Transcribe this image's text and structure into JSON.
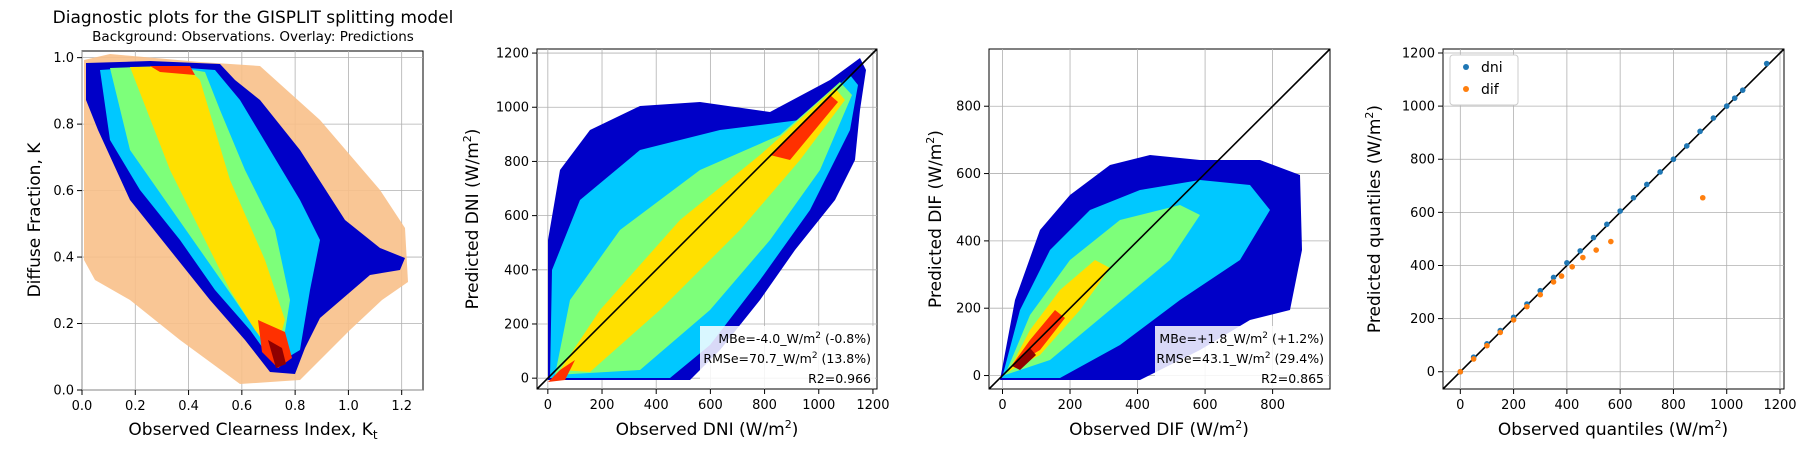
{
  "chart_data": [
    {
      "type": "scatter",
      "title": "Diagnostic plots for the GISPLIT splitting model",
      "subtitle": "Background: Observations. Overlay: Predictions",
      "xlabel": "Observed Clearness Index, K",
      "xlabel_sub": "t",
      "ylabel": "Diffuse Fraction, K",
      "xlim": [
        0.0,
        1.28
      ],
      "ylim": [
        0.0,
        1.02
      ],
      "xticks": [
        0.0,
        0.2,
        0.4,
        0.6,
        0.8,
        1.0,
        1.2
      ],
      "xtick_labels": [
        "0.0",
        "0.2",
        "0.4",
        "0.6",
        "0.8",
        "1.0",
        "1.2"
      ],
      "yticks": [
        0.0,
        0.2,
        0.4,
        0.6,
        0.8,
        1.0
      ],
      "ytick_labels": [
        "0.0",
        "0.2",
        "0.4",
        "0.6",
        "0.8",
        "1.0"
      ],
      "grid": true,
      "series": [
        {
          "name": "",
          "role": "observations",
          "color": "#f5b478",
          "x": [
            0.02,
            0.05,
            0.1,
            0.2,
            0.3,
            0.4,
            0.5,
            0.6,
            0.7,
            0.8,
            0.9,
            1.0,
            1.1,
            1.2
          ],
          "y": [
            0.98,
            0.97,
            0.92,
            0.8,
            0.68,
            0.58,
            0.5,
            0.42,
            0.35,
            0.28,
            0.25,
            0.28,
            0.32,
            0.38
          ]
        },
        {
          "name": "",
          "role": "predictions",
          "colormap": "jet",
          "x": [
            0.0,
            0.1,
            0.2,
            0.3,
            0.4,
            0.5,
            0.6,
            0.7,
            0.75,
            0.8,
            0.85,
            0.9,
            1.0,
            1.1,
            1.2
          ],
          "y": [
            0.97,
            0.9,
            0.76,
            0.62,
            0.5,
            0.38,
            0.27,
            0.18,
            0.13,
            0.09,
            0.08,
            0.12,
            0.2,
            0.3,
            0.38
          ]
        }
      ]
    },
    {
      "type": "scatter",
      "title": "",
      "xlabel": "Observed DNI (W/m",
      "ylabel": "Predicted DNI (W/m",
      "unit_sup": "2",
      "xlim": [
        -40,
        1215
      ],
      "ylim": [
        -40,
        1215
      ],
      "xticks": [
        0,
        200,
        400,
        600,
        800,
        1000,
        1200
      ],
      "xtick_labels": [
        "0",
        "200",
        "400",
        "600",
        "800",
        "1000",
        "1200"
      ],
      "yticks": [
        0,
        200,
        400,
        600,
        800,
        1000,
        1200
      ],
      "ytick_labels": [
        "0",
        "200",
        "400",
        "600",
        "800",
        "1000",
        "1200"
      ],
      "grid": true,
      "identity_line": true,
      "density_colormap": "jet",
      "stats": {
        "mbe": "MBe=-4.0_W/m",
        "mbe_tail": " (-0.8%)",
        "rmse": "RMSe=70.7_W/m",
        "rmse_tail": " (13.8%)",
        "r2": "R2=0.966"
      },
      "series": [
        {
          "name": "",
          "x": [
            0,
            100,
            200,
            300,
            400,
            500,
            600,
            700,
            800,
            900,
            1000,
            1100
          ],
          "y": [
            0,
            95,
            195,
            300,
            400,
            500,
            600,
            705,
            800,
            900,
            1000,
            1100
          ]
        }
      ]
    },
    {
      "type": "scatter",
      "title": "",
      "xlabel": "Observed DIF (W/m",
      "ylabel": "Predicted DIF (W/m",
      "unit_sup": "2",
      "xlim": [
        -40,
        970
      ],
      "ylim": [
        -40,
        970
      ],
      "xticks": [
        0,
        200,
        400,
        600,
        800
      ],
      "xtick_labels": [
        "0",
        "200",
        "400",
        "600",
        "800"
      ],
      "yticks": [
        0,
        200,
        400,
        600,
        800
      ],
      "ytick_labels": [
        "0",
        "200",
        "400",
        "600",
        "800"
      ],
      "grid": true,
      "identity_line": true,
      "density_colormap": "jet",
      "stats": {
        "mbe": "MBe=+1.8_W/m",
        "mbe_tail": " (+1.2%)",
        "rmse": "RMSe=43.1_W/m",
        "rmse_tail": " (29.4%)",
        "r2": "R2=0.865"
      },
      "series": [
        {
          "name": "",
          "x": [
            0,
            50,
            100,
            150,
            200,
            300,
            400,
            500,
            600
          ],
          "y": [
            0,
            50,
            100,
            150,
            205,
            300,
            395,
            480,
            590
          ]
        }
      ]
    },
    {
      "type": "scatter",
      "title": "",
      "xlabel": "Observed quantiles (W/m",
      "ylabel": "Predicted quantiles (W/m",
      "unit_sup": "2",
      "xlim": [
        -65,
        1215
      ],
      "ylim": [
        -65,
        1215
      ],
      "xticks": [
        0,
        200,
        400,
        600,
        800,
        1000,
        1200
      ],
      "xtick_labels": [
        "0",
        "200",
        "400",
        "600",
        "800",
        "1000",
        "1200"
      ],
      "yticks": [
        0,
        200,
        400,
        600,
        800,
        1000,
        1200
      ],
      "ytick_labels": [
        "0",
        "200",
        "400",
        "600",
        "800",
        "1000",
        "1200"
      ],
      "grid": true,
      "identity_line": true,
      "legend_position": "top-left",
      "series": [
        {
          "name": "dni",
          "color": "#1f77b4",
          "x": [
            0,
            50,
            100,
            150,
            200,
            250,
            300,
            350,
            400,
            450,
            500,
            550,
            600,
            650,
            700,
            750,
            800,
            850,
            900,
            950,
            1000,
            1030,
            1060,
            1150
          ],
          "y": [
            0,
            55,
            105,
            155,
            205,
            255,
            305,
            355,
            410,
            455,
            505,
            555,
            605,
            655,
            705,
            752,
            800,
            850,
            905,
            955,
            1000,
            1030,
            1060,
            1160
          ]
        },
        {
          "name": "dif",
          "color": "#ff7f0e",
          "x": [
            0,
            50,
            100,
            150,
            200,
            250,
            300,
            350,
            380,
            420,
            460,
            510,
            565,
            910
          ],
          "y": [
            0,
            48,
            98,
            148,
            195,
            245,
            290,
            338,
            360,
            395,
            430,
            458,
            490,
            655
          ]
        }
      ]
    }
  ]
}
